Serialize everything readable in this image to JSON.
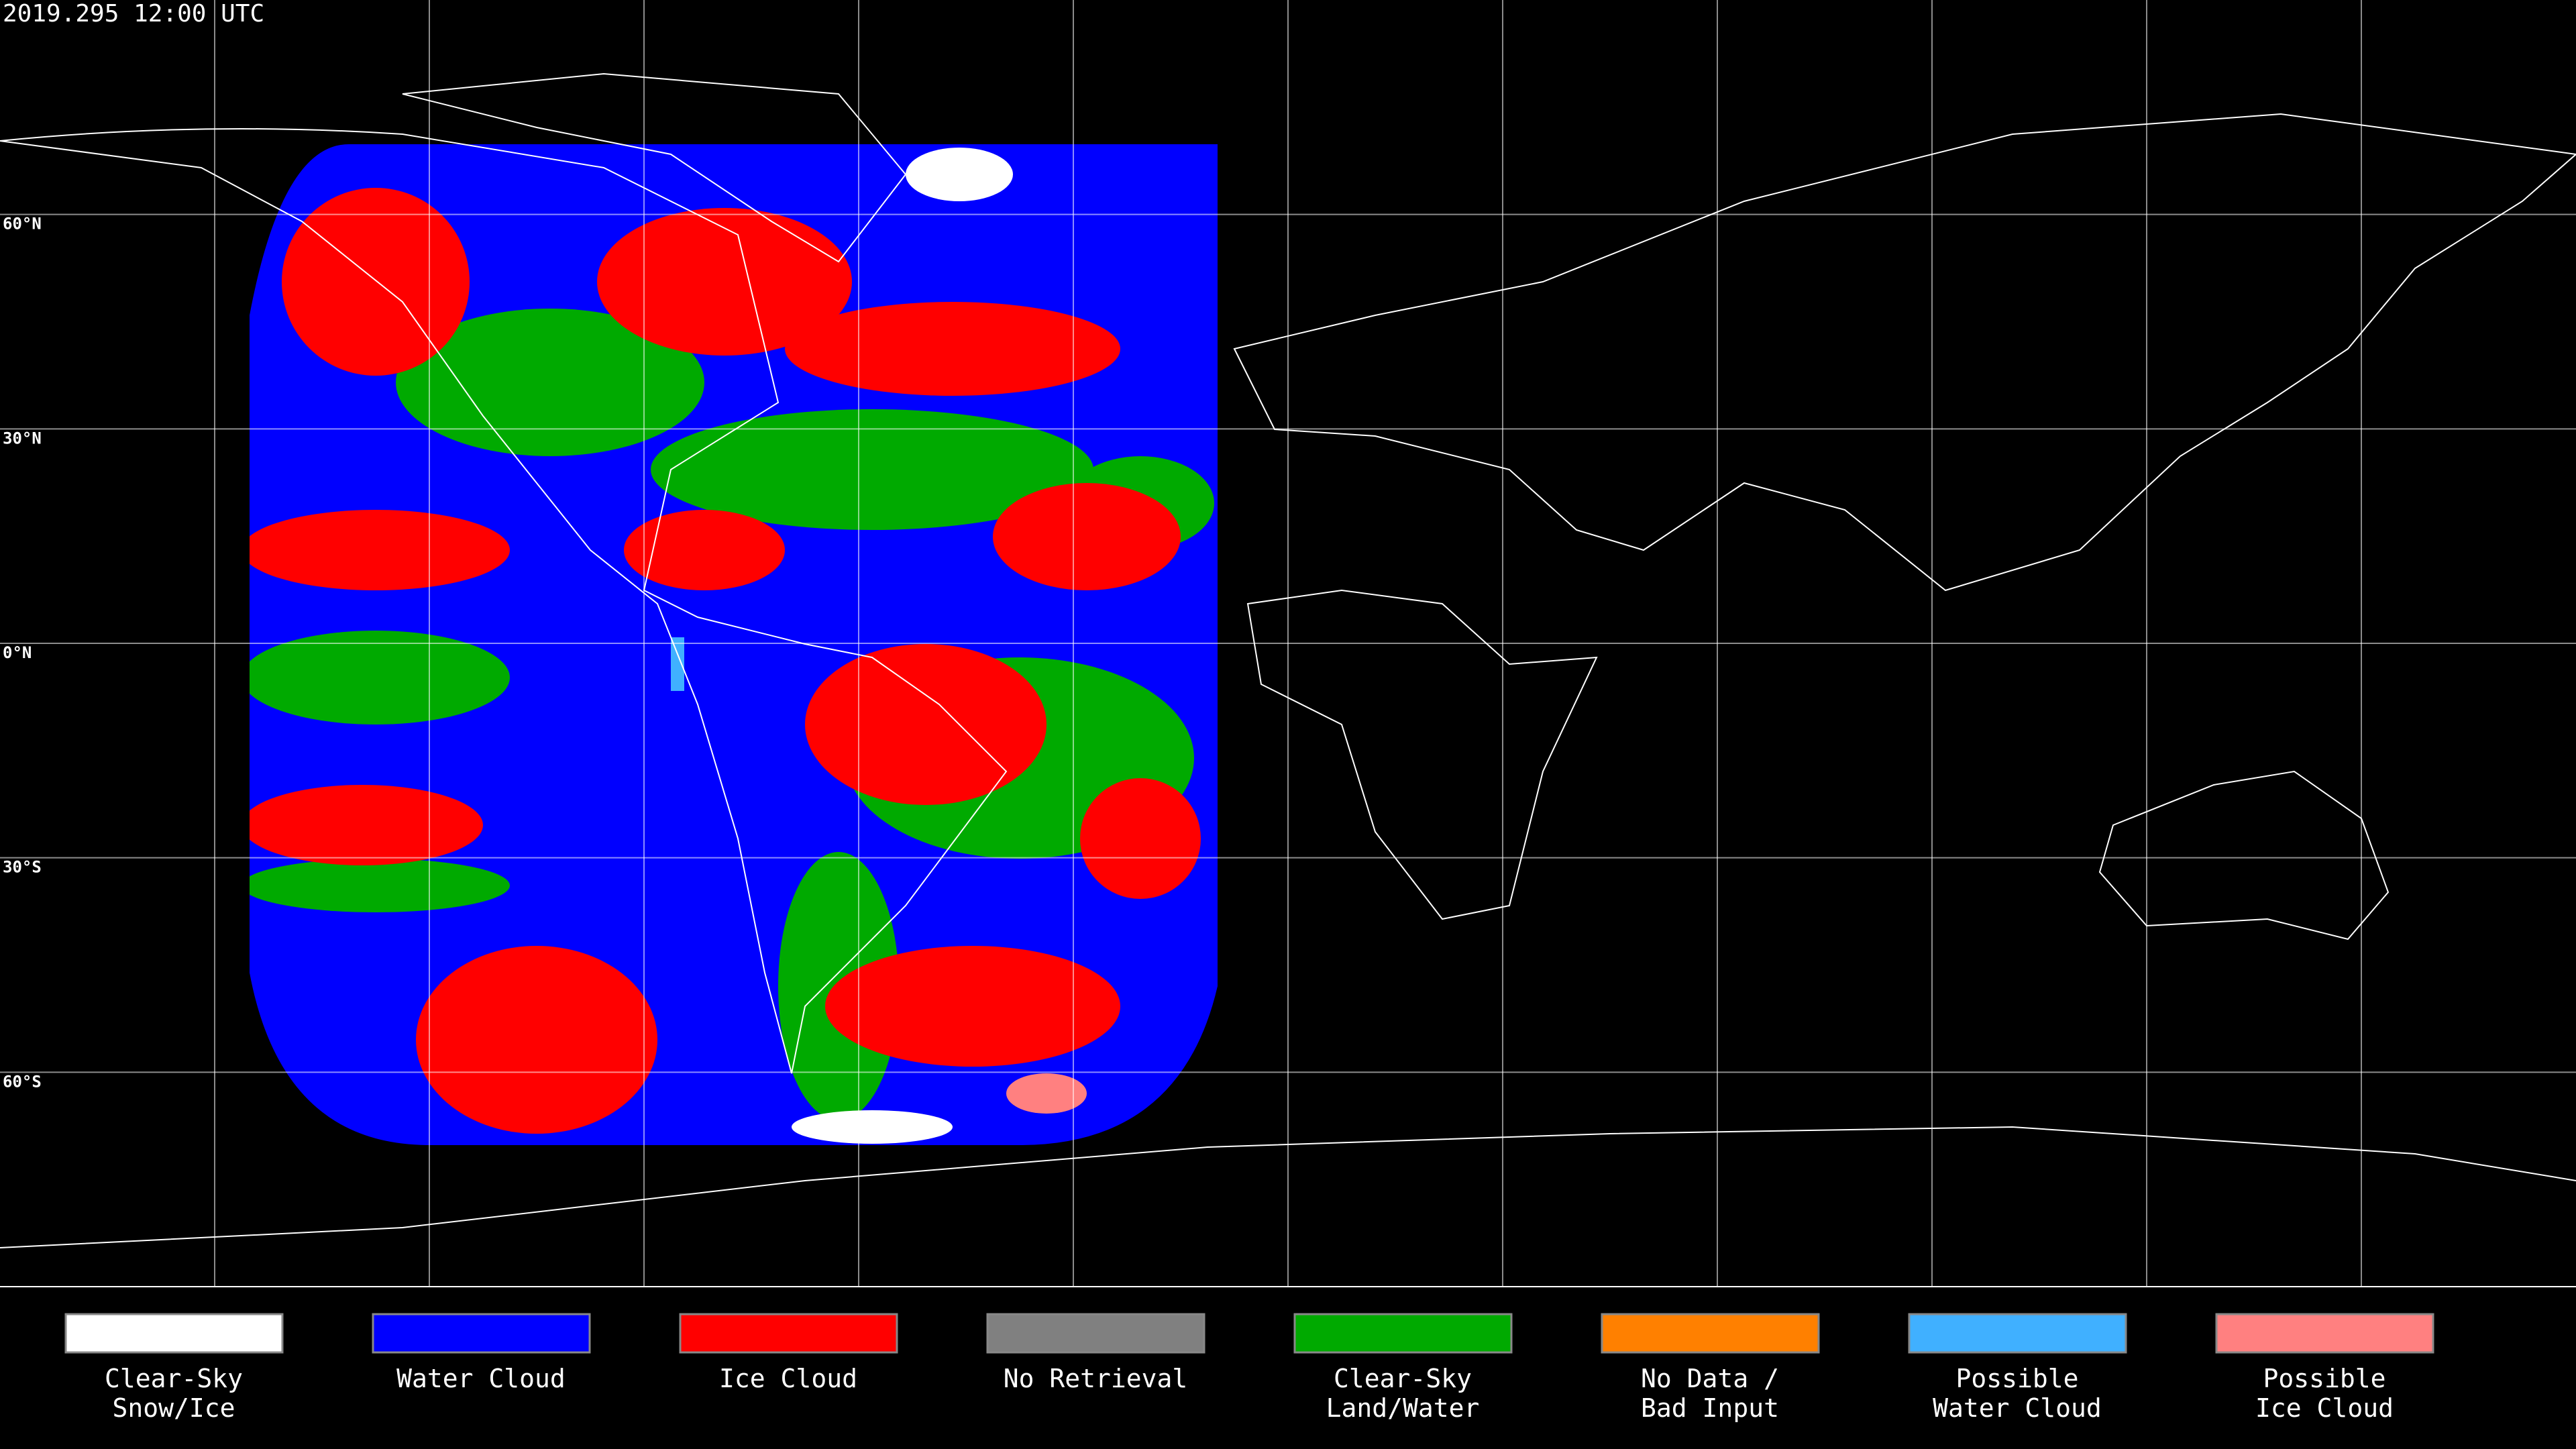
{
  "header": {
    "timestamp": "2019.295 12:00 UTC"
  },
  "map": {
    "latitude_labels": [
      "60°N",
      "30°N",
      "0°N",
      "30°S",
      "60°S"
    ]
  },
  "legend": {
    "items": [
      {
        "lines": [
          "Clear-Sky",
          "Snow/Ice"
        ],
        "color": "#ffffff"
      },
      {
        "lines": [
          "Water Cloud"
        ],
        "color": "#0000ff"
      },
      {
        "lines": [
          "Ice Cloud"
        ],
        "color": "#ff0000"
      },
      {
        "lines": [
          "No Retrieval"
        ],
        "color": "#808080"
      },
      {
        "lines": [
          "Clear-Sky",
          "Land/Water"
        ],
        "color": "#00aa00"
      },
      {
        "lines": [
          "No Data /",
          "Bad Input"
        ],
        "color": "#ff8000"
      },
      {
        "lines": [
          "Possible",
          "Water Cloud"
        ],
        "color": "#40b0ff"
      },
      {
        "lines": [
          "Possible",
          "Ice Cloud"
        ],
        "color": "#ff8080"
      }
    ]
  }
}
